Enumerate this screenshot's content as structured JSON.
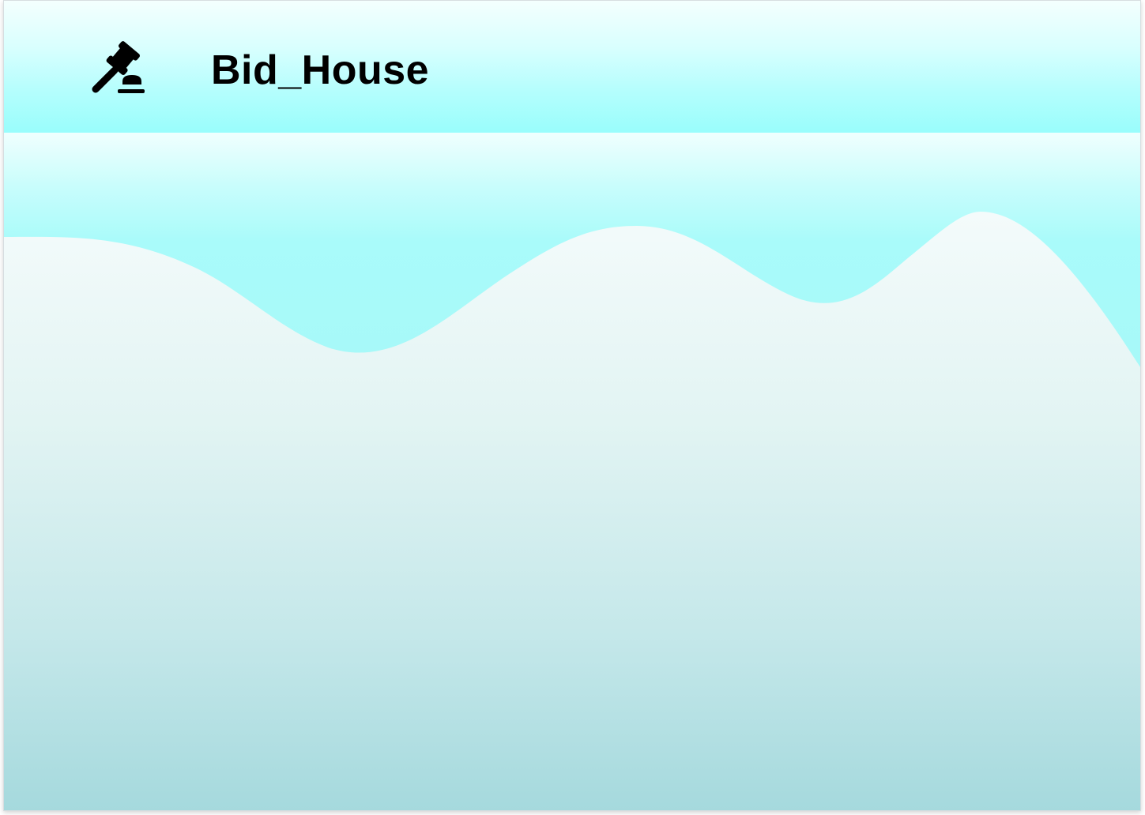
{
  "header": {
    "brand_name": "Bid_House",
    "logo_icon": "gavel-icon"
  },
  "colors": {
    "header_gradient_top": "#f4fffe",
    "header_gradient_bottom": "#99fdfc",
    "hero_sky": "#a9fbfa",
    "wave_top": "#f3fbfb",
    "wave_bottom": "#a5d9dd",
    "text": "#000000"
  }
}
